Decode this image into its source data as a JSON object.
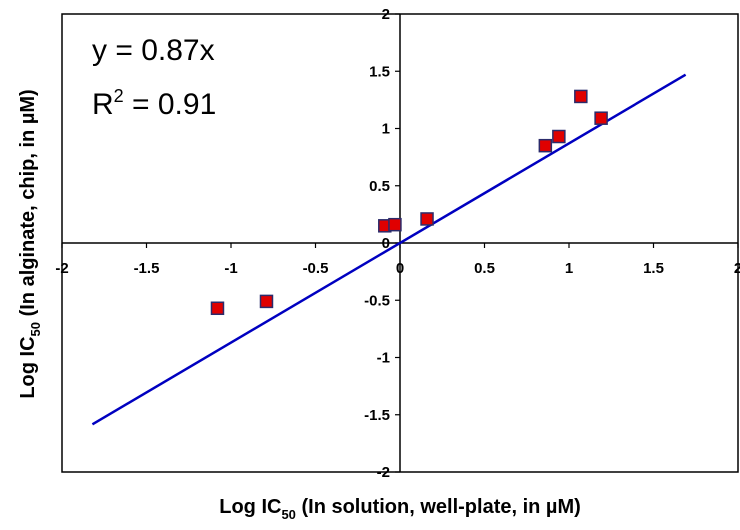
{
  "chart_data": {
    "type": "scatter",
    "title": "",
    "xlabel": {
      "prefix": "Log IC",
      "sub": "50",
      "suffix": " (In solution, well-plate, in µM)"
    },
    "ylabel": {
      "prefix": "Log IC",
      "sub": "50",
      "suffix": " (In alginate, chip, in µM)"
    },
    "xlim": [
      -2,
      2
    ],
    "ylim": [
      -2,
      2
    ],
    "x_ticks": [
      "-2",
      "-1.5",
      "-1",
      "-0.5",
      "0",
      "0.5",
      "1",
      "1.5",
      "2"
    ],
    "y_ticks": [
      "-2",
      "-1.5",
      "-1",
      "-0.5",
      "0",
      "0.5",
      "1",
      "1.5",
      "2"
    ],
    "grid": false,
    "points": [
      {
        "x": -1.08,
        "y": -0.57
      },
      {
        "x": -0.79,
        "y": -0.51
      },
      {
        "x": -0.09,
        "y": 0.15
      },
      {
        "x": -0.03,
        "y": 0.16
      },
      {
        "x": 0.16,
        "y": 0.21
      },
      {
        "x": 0.86,
        "y": 0.85
      },
      {
        "x": 0.94,
        "y": 0.93
      },
      {
        "x": 1.07,
        "y": 1.28
      },
      {
        "x": 1.19,
        "y": 1.09
      }
    ],
    "trendline": {
      "slope": 0.87,
      "x_range": [
        -1.82,
        1.69
      ]
    },
    "equation": {
      "line1": "y = 0.87x",
      "r_prefix": "R",
      "r_sup": "2",
      "r_suffix": " = 0.91"
    },
    "colors": {
      "marker_fill": "#e00000",
      "marker_stroke": "#2b2b6b",
      "trendline": "#0000c0",
      "axes": "#000000"
    }
  }
}
